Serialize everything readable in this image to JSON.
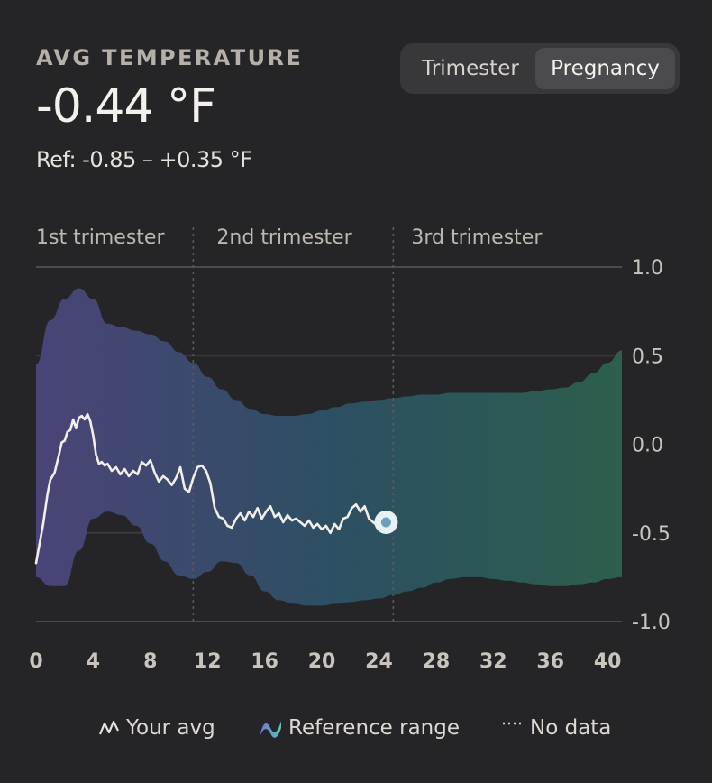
{
  "header": {
    "title": "AVG TEMPERATURE",
    "value": "-0.44 °F",
    "ref": "Ref: -0.85 – +0.35 °F"
  },
  "toggle": {
    "options": [
      "Trimester",
      "Pregnancy"
    ],
    "selected": "Pregnancy"
  },
  "chart_data": {
    "type": "line",
    "x_ticks": [
      0,
      4,
      8,
      12,
      16,
      20,
      24,
      28,
      32,
      36,
      40
    ],
    "xlim": [
      0,
      41
    ],
    "ylim": [
      -1.0,
      1.0
    ],
    "y_ticks": [
      "1.0",
      "0.5",
      "0.0",
      "-0.5",
      "-1.0"
    ],
    "y_tick_values": [
      1.0,
      0.5,
      0.0,
      -0.5,
      -1.0
    ],
    "grid": true,
    "trimesters": [
      {
        "label": "1st trimester",
        "start": 0,
        "end": 11
      },
      {
        "label": "2nd trimester",
        "start": 11,
        "end": 25
      },
      {
        "label": "3rd trimester",
        "start": 25,
        "end": 41
      }
    ],
    "reference_range": {
      "x": [
        0,
        1,
        2,
        3,
        4,
        5,
        6,
        7,
        8,
        9,
        10,
        11,
        12,
        13,
        14,
        15,
        16,
        17,
        18,
        19,
        20,
        21,
        22,
        23,
        24,
        25,
        26,
        27,
        28,
        29,
        30,
        31,
        32,
        33,
        34,
        35,
        36,
        37,
        38,
        39,
        40,
        41
      ],
      "upper": [
        0.45,
        0.7,
        0.82,
        0.88,
        0.82,
        0.68,
        0.66,
        0.64,
        0.62,
        0.58,
        0.52,
        0.46,
        0.38,
        0.31,
        0.25,
        0.2,
        0.17,
        0.16,
        0.16,
        0.17,
        0.19,
        0.21,
        0.23,
        0.24,
        0.25,
        0.26,
        0.27,
        0.28,
        0.28,
        0.29,
        0.29,
        0.29,
        0.29,
        0.29,
        0.29,
        0.3,
        0.31,
        0.32,
        0.35,
        0.4,
        0.46,
        0.53
      ],
      "lower": [
        -0.75,
        -0.8,
        -0.8,
        -0.6,
        -0.42,
        -0.38,
        -0.4,
        -0.46,
        -0.56,
        -0.66,
        -0.74,
        -0.76,
        -0.72,
        -0.66,
        -0.67,
        -0.74,
        -0.83,
        -0.88,
        -0.9,
        -0.91,
        -0.91,
        -0.9,
        -0.89,
        -0.88,
        -0.87,
        -0.85,
        -0.83,
        -0.81,
        -0.78,
        -0.76,
        -0.75,
        -0.75,
        -0.76,
        -0.77,
        -0.78,
        -0.79,
        -0.8,
        -0.8,
        -0.79,
        -0.78,
        -0.76,
        -0.75
      ]
    },
    "series": [
      {
        "x": [
          0,
          0.5,
          0.8,
          1,
          1.3,
          1.6,
          1.8,
          2.0,
          2.2,
          2.4,
          2.6,
          2.8,
          3.0,
          3.2,
          3.4,
          3.6,
          3.8,
          4.0,
          4.2,
          4.4,
          4.6,
          4.8,
          5.0,
          5.3,
          5.6,
          5.9,
          6.2,
          6.5,
          6.8,
          7.1,
          7.4,
          7.7,
          8.0,
          8.3,
          8.6,
          8.9,
          9.2,
          9.5,
          9.8,
          10.1,
          10.4,
          10.7,
          11.0,
          11.3,
          11.6,
          11.9,
          12.2,
          12.5,
          12.8,
          13.1,
          13.4,
          13.7,
          14.0,
          14.3,
          14.6,
          14.9,
          15.2,
          15.5,
          15.8,
          16.1,
          16.4,
          16.7,
          17.0,
          17.3,
          17.6,
          17.9,
          18.2,
          18.5,
          18.8,
          19.1,
          19.4,
          19.7,
          20.0,
          20.3,
          20.6,
          20.9,
          21.2,
          21.5,
          21.8,
          22.1,
          22.4,
          22.7,
          23.0,
          23.3,
          23.6,
          23.9,
          24.2,
          24.5
        ],
        "y": [
          -0.67,
          -0.45,
          -0.28,
          -0.2,
          -0.16,
          -0.06,
          0.01,
          0.02,
          0.07,
          0.08,
          0.14,
          0.09,
          0.15,
          0.16,
          0.14,
          0.17,
          0.13,
          0.05,
          -0.06,
          -0.11,
          -0.1,
          -0.12,
          -0.11,
          -0.15,
          -0.13,
          -0.17,
          -0.14,
          -0.18,
          -0.15,
          -0.17,
          -0.1,
          -0.12,
          -0.09,
          -0.16,
          -0.21,
          -0.18,
          -0.2,
          -0.23,
          -0.19,
          -0.13,
          -0.25,
          -0.27,
          -0.19,
          -0.13,
          -0.12,
          -0.15,
          -0.22,
          -0.36,
          -0.41,
          -0.42,
          -0.46,
          -0.47,
          -0.42,
          -0.39,
          -0.43,
          -0.38,
          -0.41,
          -0.36,
          -0.42,
          -0.38,
          -0.35,
          -0.41,
          -0.39,
          -0.44,
          -0.4,
          -0.43,
          -0.42,
          -0.44,
          -0.46,
          -0.43,
          -0.47,
          -0.45,
          -0.48,
          -0.46,
          -0.5,
          -0.45,
          -0.48,
          -0.42,
          -0.41,
          -0.36,
          -0.34,
          -0.38,
          -0.35,
          -0.42,
          -0.44,
          -0.46,
          -0.42,
          -0.44
        ]
      }
    ],
    "current_point": {
      "x": 24.5,
      "y": -0.44
    },
    "legend": [
      "Your avg",
      "Reference range",
      "No data"
    ],
    "legend_position": "bottom"
  }
}
